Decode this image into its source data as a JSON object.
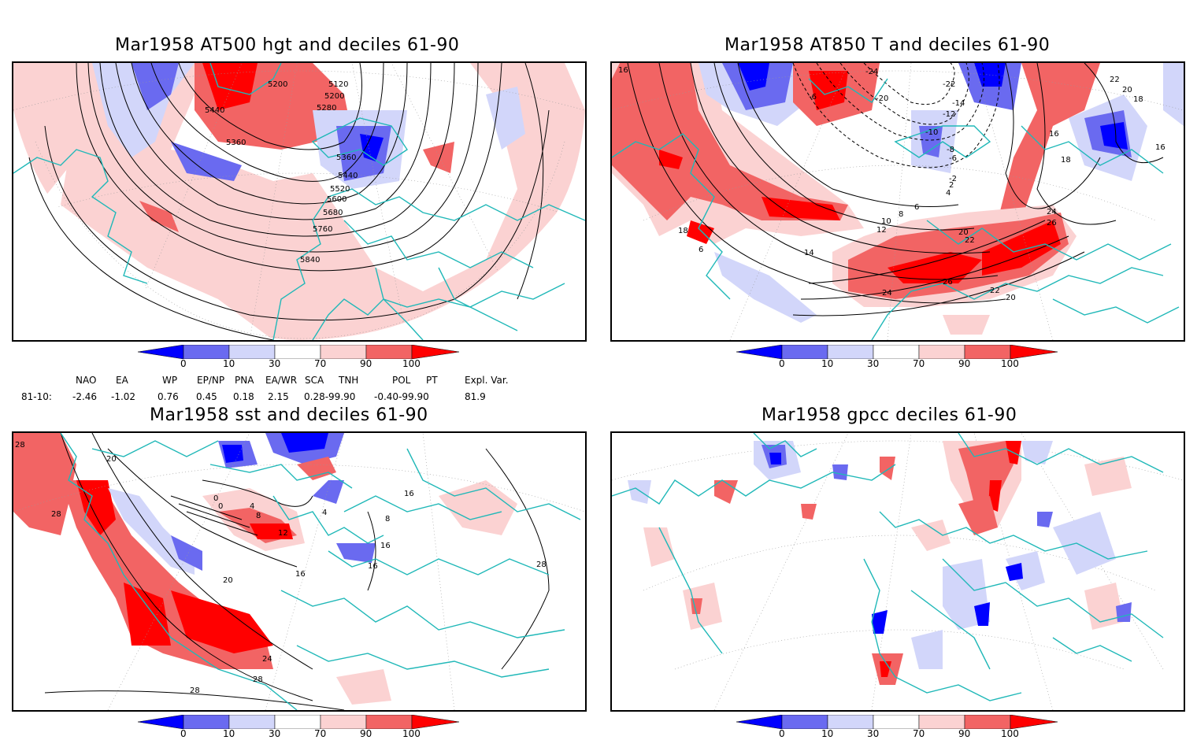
{
  "panels": [
    {
      "title": "Mar1958 AT500 hgt and deciles 61-90",
      "contour_labels": [
        "5120",
        "5200",
        "5200",
        "5280",
        "5360",
        "5360",
        "5440",
        "5440",
        "5520",
        "5600",
        "5680",
        "5760",
        "5840"
      ]
    },
    {
      "title": "Mar1958 AT850 T and deciles 61-90",
      "contour_labels": [
        "16",
        "22",
        "20",
        "18",
        "16",
        "16",
        "18",
        "-6",
        "-24",
        "-20",
        "-22",
        "-14",
        "-12",
        "-10",
        "-8",
        "-6",
        "-2",
        "2",
        "4",
        "6",
        "8",
        "10",
        "12",
        "14",
        "18",
        "6",
        "20",
        "22",
        "24",
        "26",
        "26",
        "24",
        "22",
        "20"
      ]
    },
    {
      "title": "Mar1958 sst and deciles 61-90",
      "contour_labels": [
        "28",
        "20",
        "28",
        "0",
        "0",
        "4",
        "8",
        "12",
        "16",
        "16",
        "20",
        "24",
        "28",
        "28",
        "28",
        "4",
        "16",
        "8",
        "16"
      ]
    },
    {
      "title": "Mar1958 gpcc deciles 61-90",
      "contour_labels": []
    }
  ],
  "colorbar": {
    "labels": [
      "0",
      "10",
      "30",
      "70",
      "90",
      "100"
    ],
    "colors": [
      "#0000ff",
      "#6a6af0",
      "#d2d6fa",
      "#ffffff",
      "#fbd2d2",
      "#f26464",
      "#ff0000"
    ]
  },
  "indices": {
    "headers": [
      "NAO",
      "EA",
      "WP",
      "EP/NP",
      "PNA",
      "EA/WR",
      "SCA",
      "TNH",
      "POL",
      "PT",
      "Expl. Var."
    ],
    "row_label": "81-10:",
    "values": [
      "-2.46",
      "-1.02",
      "0.76",
      "0.45",
      "0.18",
      "2.15",
      "0.28-99.90",
      "-0.40-99.90",
      "81.9"
    ]
  }
}
